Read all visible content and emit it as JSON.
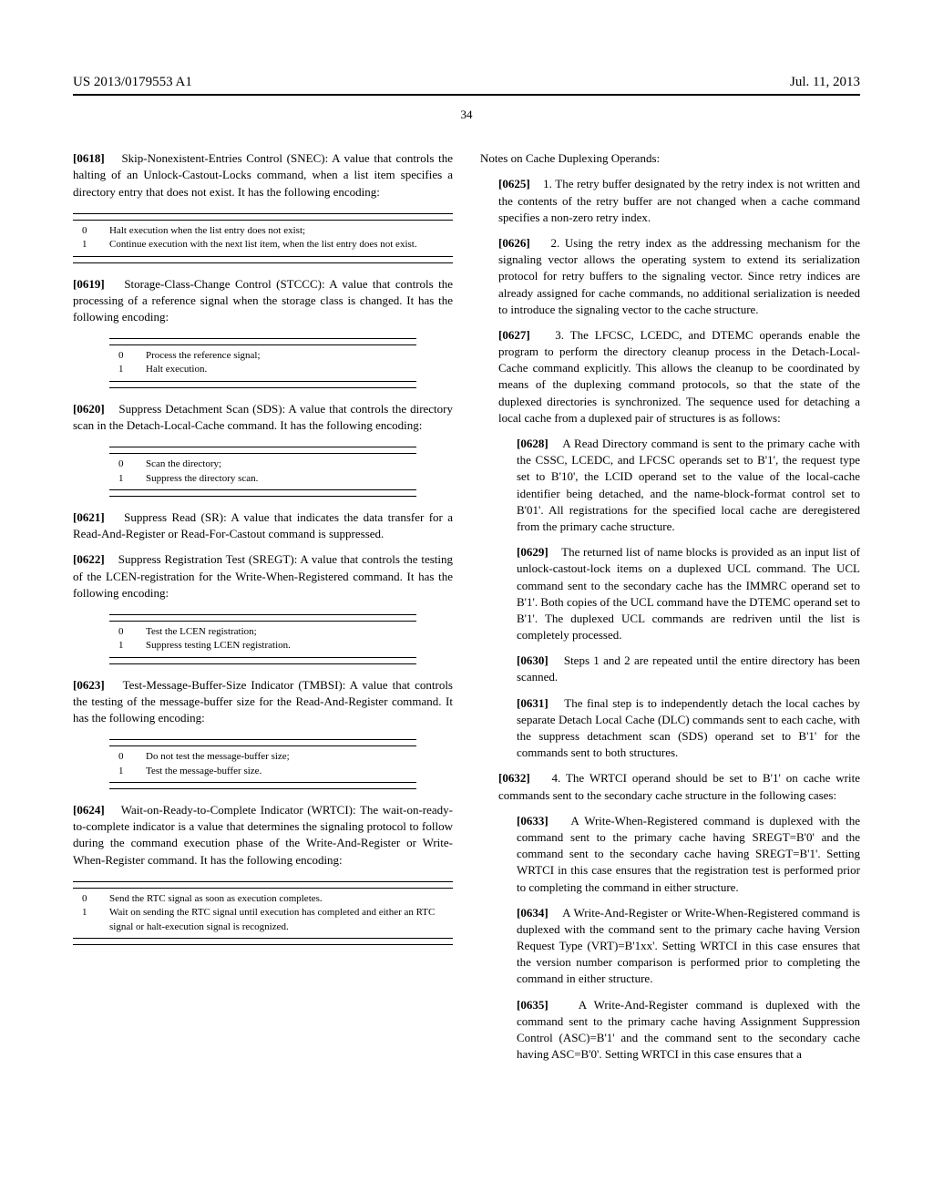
{
  "header": {
    "docNumber": "US 2013/0179553 A1",
    "date": "Jul. 11, 2013"
  },
  "pageNumber": "34",
  "left": {
    "p0618": {
      "num": "[0618]",
      "text": "Skip-Nonexistent-Entries Control (SNEC): A value that controls the halting of an Unlock-Castout-Locks command, when a list item specifies a directory entry that does not exist. It has the following encoding:"
    },
    "t0618": {
      "r0c": "0",
      "r0d": "Halt execution when the list entry does not exist;",
      "r1c": "1",
      "r1d": "Continue execution with the next list item, when the list entry does not exist."
    },
    "p0619": {
      "num": "[0619]",
      "text": "Storage-Class-Change Control (STCCC): A value that controls the processing of a reference signal when the storage class is changed. It has the following encoding:"
    },
    "t0619": {
      "r0c": "0",
      "r0d": "Process the reference signal;",
      "r1c": "1",
      "r1d": "Halt execution."
    },
    "p0620": {
      "num": "[0620]",
      "text": "Suppress Detachment Scan (SDS): A value that controls the directory scan in the Detach-Local-Cache command. It has the following encoding:"
    },
    "t0620": {
      "r0c": "0",
      "r0d": "Scan the directory;",
      "r1c": "1",
      "r1d": "Suppress the directory scan."
    },
    "p0621": {
      "num": "[0621]",
      "text": "Suppress Read (SR): A value that indicates the data transfer for a Read-And-Register or Read-For-Castout command is suppressed."
    },
    "p0622": {
      "num": "[0622]",
      "text": "Suppress Registration Test (SREGT): A value that controls the testing of the LCEN-registration for the Write-When-Registered command. It has the following encoding:"
    },
    "t0622": {
      "r0c": "0",
      "r0d": "Test the LCEN registration;",
      "r1c": "1",
      "r1d": "Suppress testing LCEN registration."
    },
    "p0623": {
      "num": "[0623]",
      "text": "Test-Message-Buffer-Size Indicator (TMBSI): A value that controls the testing of the message-buffer size for the Read-And-Register command. It has the following encoding:"
    },
    "t0623": {
      "r0c": "0",
      "r0d": "Do not test the message-buffer size;",
      "r1c": "1",
      "r1d": "Test the message-buffer size."
    },
    "p0624": {
      "num": "[0624]",
      "text": "Wait-on-Ready-to-Complete Indicator (WRTCI): The wait-on-ready-to-complete indicator is a value that determines the signaling protocol to follow during the command execution phase of the Write-And-Register or Write-When-Register command. It has the following encoding:"
    },
    "t0624": {
      "r0c": "0",
      "r0d": "Send the RTC signal as soon as execution completes.",
      "r1c": "1",
      "r1d": "Wait on sending the RTC signal until execution has completed and either an RTC signal or halt-execution signal is recognized."
    }
  },
  "right": {
    "heading": "Notes on Cache Duplexing Operands:",
    "p0625": {
      "num": "[0625]",
      "text": "1. The retry buffer designated by the retry index is not written and the contents of the retry buffer are not changed when a cache command specifies a non-zero retry index."
    },
    "p0626": {
      "num": "[0626]",
      "text": "2. Using the retry index as the addressing mechanism for the signaling vector allows the operating system to extend its serialization protocol for retry buffers to the signaling vector. Since retry indices are already assigned for cache commands, no additional serialization is needed to introduce the signaling vector to the cache structure."
    },
    "p0627": {
      "num": "[0627]",
      "text": "3. The LFCSC, LCEDC, and DTEMC operands enable the program to perform the directory cleanup process in the Detach-Local-Cache command explicitly. This allows the cleanup to be coordinated by means of the duplexing command protocols, so that the state of the duplexed directories is synchronized. The sequence used for detaching a local cache from a duplexed pair of structures is as follows:"
    },
    "p0628": {
      "num": "[0628]",
      "text": "A Read Directory command is sent to the primary cache with the CSSC, LCEDC, and LFCSC operands set to B'1', the request type set to B'10', the LCID operand set to the value of the local-cache identifier being detached, and the name-block-format control set to B'01'. All registrations for the specified local cache are deregistered from the primary cache structure."
    },
    "p0629": {
      "num": "[0629]",
      "text": "The returned list of name blocks is provided as an input list of unlock-castout-lock items on a duplexed UCL command. The UCL command sent to the secondary cache has the IMMRC operand set to B'1'. Both copies of the UCL command have the DTEMC operand set to B'1'. The duplexed UCL commands are redriven until the list is completely processed."
    },
    "p0630": {
      "num": "[0630]",
      "text": "Steps 1 and 2 are repeated until the entire directory has been scanned."
    },
    "p0631": {
      "num": "[0631]",
      "text": "The final step is to independently detach the local caches by separate Detach Local Cache (DLC) commands sent to each cache, with the suppress detachment scan (SDS) operand set to B'1' for the commands sent to both structures."
    },
    "p0632": {
      "num": "[0632]",
      "text": "4. The WRTCI operand should be set to B'1' on cache write commands sent to the secondary cache structure in the following cases:"
    },
    "p0633": {
      "num": "[0633]",
      "text": "A Write-When-Registered command is duplexed with the command sent to the primary cache having SREGT=B'0' and the command sent to the secondary cache having SREGT=B'1'. Setting WRTCI in this case ensures that the registration test is performed prior to completing the command in either structure."
    },
    "p0634": {
      "num": "[0634]",
      "text": "A Write-And-Register or Write-When-Registered command is duplexed with the command sent to the primary cache having Version Request Type (VRT)=B'1xx'. Setting WRTCI in this case ensures that the version number comparison is performed prior to completing the command in either structure."
    },
    "p0635": {
      "num": "[0635]",
      "text": "A Write-And-Register command is duplexed with the command sent to the primary cache having Assignment Suppression Control (ASC)=B'1' and the command sent to the secondary cache having ASC=B'0'. Setting WRTCI in this case ensures that a"
    }
  }
}
